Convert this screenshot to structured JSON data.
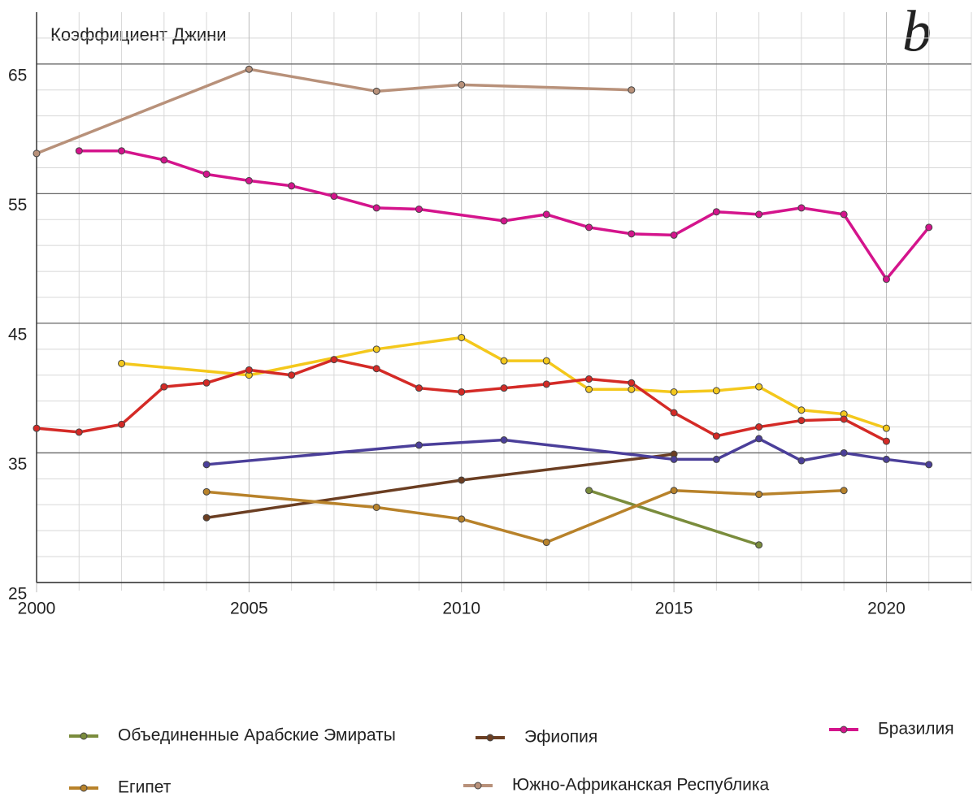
{
  "chart_data": {
    "type": "line",
    "title": "Коэффициент Джини",
    "annotation": "b",
    "xlim": [
      2000,
      2022
    ],
    "xticks": [
      2000,
      2005,
      2010,
      2015,
      2020
    ],
    "x_minor_ticks": [
      2001,
      2002,
      2003,
      2004,
      2006,
      2007,
      2008,
      2009,
      2011,
      2012,
      2013,
      2014,
      2016,
      2017,
      2018,
      2019,
      2021,
      2022
    ],
    "ylim": [
      25,
      69
    ],
    "yticks": [
      25,
      35,
      45,
      55,
      65
    ],
    "y_minor_ticks": [
      27,
      29,
      31,
      33,
      37,
      39,
      41,
      43,
      47,
      49,
      51,
      53,
      57,
      59,
      61,
      63,
      67
    ],
    "grid": true,
    "series": [
      {
        "name": "Объединенные Арабские Эмираты",
        "color": "#7a8c3c",
        "x": [
          2013,
          2017
        ],
        "values": [
          32.1,
          27.9
        ]
      },
      {
        "name": "Эфиопия",
        "color": "#6b3e22",
        "x": [
          2004,
          2010,
          2015
        ],
        "values": [
          30.0,
          32.9,
          34.9
        ]
      },
      {
        "name": "Бразилия",
        "color": "#d4148c",
        "x": [
          2001,
          2002,
          2003,
          2004,
          2005,
          2006,
          2007,
          2008,
          2009,
          2011,
          2012,
          2013,
          2014,
          2015,
          2016,
          2017,
          2018,
          2019,
          2020,
          2021
        ],
        "values": [
          58.3,
          58.3,
          57.6,
          56.5,
          56.0,
          55.6,
          54.8,
          53.9,
          53.8,
          52.9,
          53.4,
          52.4,
          51.9,
          51.8,
          53.6,
          53.4,
          53.9,
          53.4,
          48.4,
          52.4
        ]
      },
      {
        "name": "Египет",
        "color": "#b8822a",
        "x": [
          2004,
          2008,
          2010,
          2012,
          2015,
          2017,
          2019
        ],
        "values": [
          32.0,
          30.8,
          29.9,
          28.1,
          32.1,
          31.8,
          32.1
        ]
      },
      {
        "name": "Южно-Африканская Республика",
        "color": "#b8917a",
        "x": [
          2000,
          2005,
          2008,
          2010,
          2014
        ],
        "values": [
          58.1,
          64.6,
          62.9,
          63.4,
          63.0
        ]
      },
      {
        "color": "#f4c81c",
        "x": [
          2002,
          2005,
          2008,
          2010,
          2011,
          2012,
          2013,
          2014,
          2015,
          2016,
          2017,
          2018,
          2019,
          2020
        ],
        "values": [
          41.9,
          41.0,
          43.0,
          43.9,
          42.1,
          42.1,
          39.9,
          39.9,
          39.7,
          39.8,
          40.1,
          38.3,
          38.0,
          36.9
        ]
      },
      {
        "color": "#d42a26",
        "x": [
          2000,
          2001,
          2002,
          2003,
          2004,
          2005,
          2006,
          2007,
          2008,
          2009,
          2010,
          2011,
          2012,
          2013,
          2014,
          2015,
          2016,
          2017,
          2018,
          2019,
          2020
        ],
        "values": [
          36.9,
          36.6,
          37.2,
          40.1,
          40.4,
          41.4,
          41.0,
          42.2,
          41.5,
          40.0,
          39.7,
          40.0,
          40.3,
          40.7,
          40.4,
          38.1,
          36.3,
          37.0,
          37.5,
          37.6,
          35.9
        ]
      },
      {
        "color": "#4b3f9a",
        "x": [
          2004,
          2009,
          2011,
          2015,
          2016,
          2017,
          2018,
          2019,
          2020,
          2021
        ],
        "values": [
          34.1,
          35.6,
          36.0,
          34.5,
          34.5,
          36.1,
          34.4,
          35.0,
          34.5,
          34.1
        ]
      }
    ]
  }
}
